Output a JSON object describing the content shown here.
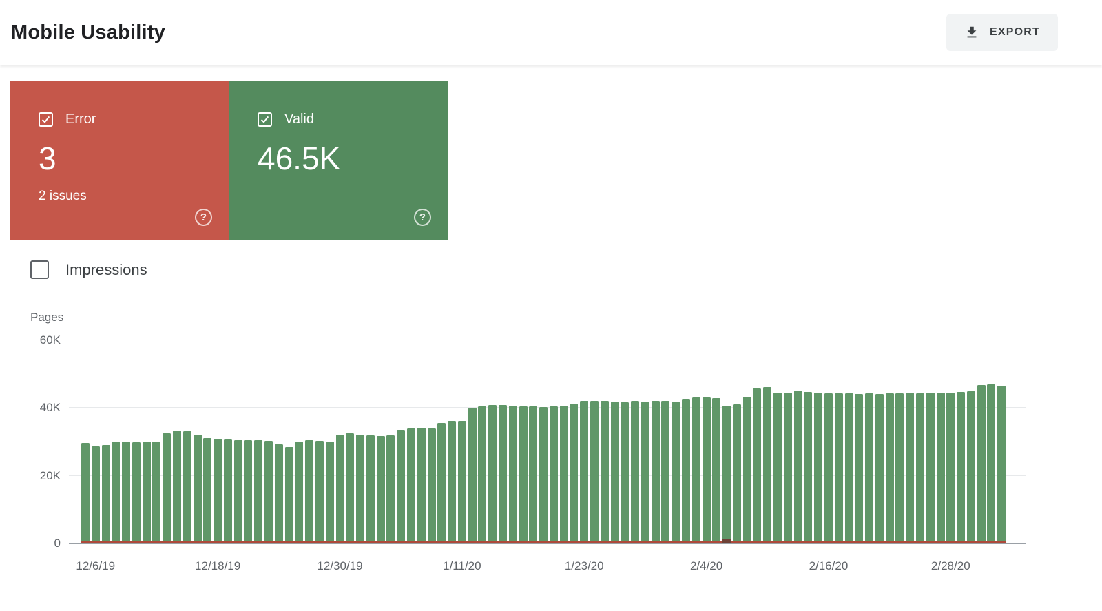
{
  "header": {
    "title": "Mobile Usability",
    "export_label": "EXPORT"
  },
  "icons": {
    "export": "download-icon",
    "card_checkbox": "checked-checkbox-icon",
    "help": "help-circle-icon",
    "impressions_checkbox": "unchecked-checkbox-icon"
  },
  "cards": {
    "error": {
      "label": "Error",
      "value": "3",
      "subtitle": "2 issues",
      "checked": true,
      "color": "#c5574a"
    },
    "valid": {
      "label": "Valid",
      "value": "46.5K",
      "checked": true,
      "color": "#548b5e"
    }
  },
  "impressions": {
    "label": "Impressions",
    "checked": false
  },
  "chart_data": {
    "type": "bar",
    "title": "",
    "y_axis_title": "Pages",
    "unit": "K pages",
    "ylim": [
      0,
      60
    ],
    "grid": true,
    "y_ticks": [
      {
        "label": "0",
        "value": 0
      },
      {
        "label": "20K",
        "value": 20
      },
      {
        "label": "40K",
        "value": 40
      },
      {
        "label": "60K",
        "value": 60
      }
    ],
    "x_ticks": [
      {
        "label": "12/6/19",
        "index": 1
      },
      {
        "label": "12/18/19",
        "index": 13
      },
      {
        "label": "12/30/19",
        "index": 25
      },
      {
        "label": "1/11/20",
        "index": 37
      },
      {
        "label": "1/23/20",
        "index": 49
      },
      {
        "label": "2/4/20",
        "index": 61
      },
      {
        "label": "2/16/20",
        "index": 73
      },
      {
        "label": "2/28/20",
        "index": 85
      }
    ],
    "series": [
      {
        "name": "Valid",
        "color": "#609768",
        "values": [
          29.4,
          28.4,
          28.8,
          29.9,
          29.8,
          29.7,
          30.0,
          29.9,
          32.4,
          33.1,
          33.0,
          31.9,
          31.0,
          30.7,
          30.5,
          30.4,
          30.3,
          30.4,
          30.2,
          29.0,
          28.2,
          29.9,
          30.4,
          30.2,
          30.0,
          31.9,
          32.3,
          32.0,
          31.8,
          31.6,
          31.8,
          33.4,
          33.7,
          34.0,
          33.8,
          35.4,
          35.9,
          36.0,
          39.8,
          40.3,
          40.7,
          40.6,
          40.4,
          40.2,
          40.3,
          40.1,
          40.3,
          40.4,
          41.0,
          41.8,
          42.0,
          41.8,
          41.7,
          41.5,
          41.8,
          41.7,
          42.0,
          41.8,
          41.6,
          42.6,
          43.0,
          42.9,
          42.7,
          40.5,
          40.9,
          43.2,
          45.8,
          46.0,
          44.4,
          44.3,
          44.9,
          44.6,
          44.4,
          44.2,
          44.1,
          44.2,
          44.0,
          44.1,
          44.0,
          44.2,
          44.1,
          44.3,
          44.2,
          44.4,
          44.3,
          44.4,
          44.6,
          44.8,
          46.6,
          46.7,
          46.4
        ]
      },
      {
        "name": "Error",
        "color": "#ad4a3b",
        "baseline_value": 0.2,
        "spike": {
          "index": 63,
          "value": 1.2
        },
        "spike_color": "#6e4238"
      }
    ]
  }
}
